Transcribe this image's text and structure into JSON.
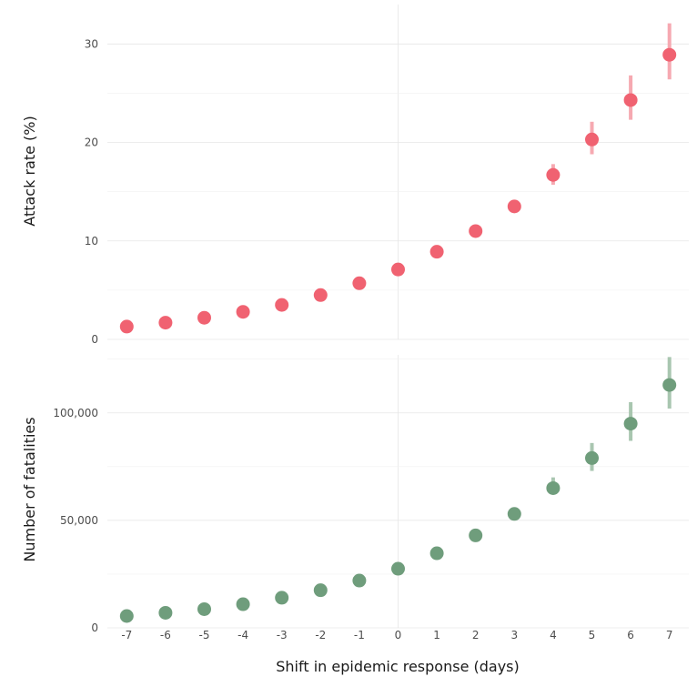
{
  "chart_data": [
    {
      "type": "scatter",
      "panel": "top",
      "ylabel": "Attack rate (%)",
      "x": [
        -7,
        -6,
        -5,
        -4,
        -3,
        -2,
        -1,
        0,
        1,
        2,
        3,
        4,
        5,
        6,
        7
      ],
      "y": [
        1.3,
        1.7,
        2.2,
        2.8,
        3.5,
        4.5,
        5.7,
        7.1,
        8.9,
        11.0,
        13.5,
        16.7,
        20.3,
        24.3,
        28.9
      ],
      "y_low": [
        1.3,
        1.7,
        2.2,
        2.8,
        3.5,
        4.5,
        5.7,
        7.1,
        8.9,
        11.0,
        13.5,
        15.7,
        18.8,
        22.3,
        26.4
      ],
      "y_high": [
        1.3,
        1.7,
        2.2,
        2.8,
        3.5,
        4.5,
        5.7,
        7.1,
        8.9,
        11.0,
        13.5,
        17.8,
        22.1,
        26.8,
        32.1
      ],
      "ylim": [
        0,
        34
      ],
      "yticks": [
        0,
        10,
        20,
        30
      ],
      "ytick_labels": [
        "0",
        "10",
        "20",
        "30"
      ],
      "color": "#f06271",
      "err_color": "#f6a9b1"
    },
    {
      "type": "scatter",
      "panel": "bottom",
      "ylabel": "Number of fatalities",
      "x": [
        -7,
        -6,
        -5,
        -4,
        -3,
        -2,
        -1,
        0,
        1,
        2,
        3,
        4,
        5,
        6,
        7
      ],
      "y": [
        5500,
        7000,
        8700,
        11000,
        14000,
        17500,
        22000,
        27500,
        34700,
        43000,
        53000,
        65000,
        79000,
        95000,
        113000
      ],
      "y_low": [
        5500,
        7000,
        8700,
        11000,
        14000,
        17500,
        22000,
        27500,
        34700,
        43000,
        53000,
        62000,
        73000,
        87000,
        102000
      ],
      "y_high": [
        5500,
        7000,
        8700,
        11000,
        14000,
        17500,
        22000,
        27500,
        34700,
        43000,
        53000,
        70000,
        86000,
        105000,
        126000
      ],
      "ylim": [
        0,
        127000
      ],
      "yticks": [
        0,
        50000,
        100000
      ],
      "ytick_labels": [
        "0",
        "50,000",
        "100,000"
      ],
      "color": "#6f9d7c",
      "err_color": "#a9c6b0"
    }
  ],
  "xlabel": "Shift in epidemic response (days)",
  "xlim": [
    -7.5,
    7.5
  ],
  "xticks": [
    -7,
    -6,
    -5,
    -4,
    -3,
    -2,
    -1,
    0,
    1,
    2,
    3,
    4,
    5,
    6,
    7
  ],
  "xtick_labels": [
    "-7",
    "-6",
    "-5",
    "-4",
    "-3",
    "-2",
    "-1",
    "0",
    "1",
    "2",
    "3",
    "4",
    "5",
    "6",
    "7"
  ]
}
